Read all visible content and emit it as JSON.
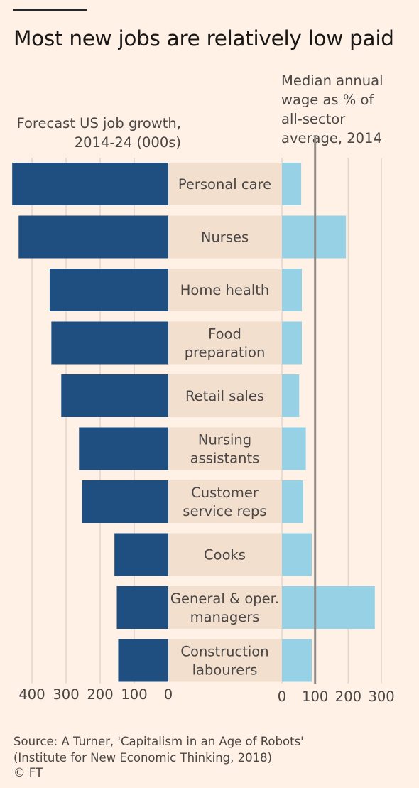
{
  "header": {
    "title": "Most new jobs are relatively low paid"
  },
  "left_axis_title": [
    "Forecast US job growth,",
    "2014-24 (000s)"
  ],
  "right_axis_title": [
    "Median annual",
    "wage as % of",
    "all-sector",
    "average, 2014"
  ],
  "footer": {
    "source_line1": "Source: A Turner, 'Capitalism in an Age of Robots'",
    "source_line2": "(Institute for New Economic Thinking, 2018)",
    "copyright": "© FT"
  },
  "colors": {
    "background": "#fff1e5",
    "growth_bar": "#1f4e80",
    "wage_bar": "#96d1e5",
    "label_band": "#f2dfce",
    "reference_line": "#8f8a86",
    "grid": "#e2d6cb"
  },
  "chart_data": [
    {
      "type": "bar",
      "orientation": "horizontal",
      "direction": "leftward",
      "title": "Forecast US job growth, 2014-24 (000s)",
      "categories": [
        [
          "Personal care"
        ],
        [
          "Nurses"
        ],
        [
          "Home health"
        ],
        [
          "Food",
          "preparation"
        ],
        [
          "Retail sales"
        ],
        [
          "Nursing",
          "assistants"
        ],
        [
          "Customer",
          "service reps"
        ],
        [
          "Cooks"
        ],
        [
          "General & oper.",
          "managers"
        ],
        [
          "Construction",
          "labourers"
        ]
      ],
      "values": [
        458,
        439,
        348,
        343,
        314,
        262,
        253,
        158,
        151,
        147
      ],
      "xlim": [
        0,
        450
      ],
      "xticks": [
        400,
        300,
        200,
        100,
        0
      ],
      "grid": true
    },
    {
      "type": "bar",
      "orientation": "horizontal",
      "title": "Median annual wage as % of all-sector average, 2014",
      "categories": [
        "Personal care",
        "Nurses",
        "Home health",
        "Food preparation",
        "Retail sales",
        "Nursing assistants",
        "Customer service reps",
        "Cooks",
        "General & oper. managers",
        "Construction labourers"
      ],
      "values": [
        58,
        193,
        60,
        60,
        52,
        72,
        64,
        90,
        280,
        90
      ],
      "xlim": [
        0,
        330
      ],
      "xticks": [
        0,
        100,
        200,
        300
      ],
      "reference_line": 100,
      "grid": true
    }
  ]
}
